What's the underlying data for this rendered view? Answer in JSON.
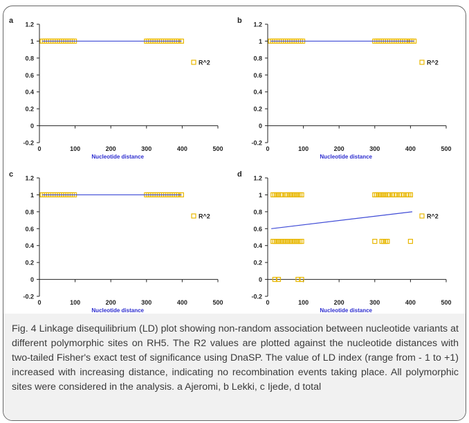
{
  "colors": {
    "marker": "#e8b700",
    "trend": "#3f4bd6",
    "axis_title": "#2d2dcf",
    "axis": "#222222",
    "caption_bg": "#f1f1f1"
  },
  "caption": "Fig. 4 Linkage disequilibrium (LD) plot showing non-random association between nucleotide variants at different polymorphic sites on RH5. The R2 values are plotted against the nucleotide distances with two-tailed Fisher's exact test of significance using DnaSP. The value of LD index (range from - 1 to +1) increased with increasing distance, indicating no recombination events taking place. All polymorphic sites were considered in the analysis. a Ajeromi, b Lekki, c Ijede, d total",
  "chart_data": [
    {
      "panel": "a",
      "type": "scatter",
      "xlabel": "Nucleotide distance",
      "ylabel": "",
      "xlim": [
        0,
        500
      ],
      "ylim": [
        -0.2,
        1.2
      ],
      "xticks": [
        "0",
        "100",
        "200",
        "300",
        "400",
        "500"
      ],
      "yticks": [
        "-0.2",
        "0",
        "0.2",
        "0.4",
        "0.6",
        "0.8",
        "1",
        "1.2"
      ],
      "legend": "right",
      "series": [
        {
          "name": "R^2",
          "x": [
            8,
            14,
            20,
            26,
            32,
            38,
            44,
            50,
            56,
            62,
            68,
            74,
            80,
            86,
            92,
            98,
            300,
            306,
            312,
            318,
            324,
            330,
            336,
            342,
            348,
            354,
            360,
            366,
            372,
            378,
            384,
            390,
            398
          ],
          "y": [
            1,
            1,
            1,
            1,
            1,
            1,
            1,
            1,
            1,
            1,
            1,
            1,
            1,
            1,
            1,
            1,
            1,
            1,
            1,
            1,
            1,
            1,
            1,
            1,
            1,
            1,
            1,
            1,
            1,
            1,
            1,
            1,
            1
          ]
        }
      ],
      "trendline": {
        "x": [
          8,
          398
        ],
        "y": [
          1,
          1
        ]
      }
    },
    {
      "panel": "b",
      "type": "scatter",
      "xlabel": "Nucleotide distance",
      "ylabel": "",
      "xlim": [
        0,
        500
      ],
      "ylim": [
        -0.2,
        1.2
      ],
      "xticks": [
        "0",
        "100",
        "200",
        "300",
        "400",
        "500"
      ],
      "yticks": [
        "-0.2",
        "0",
        "0.2",
        "0.4",
        "0.6",
        "0.8",
        "1",
        "1.2"
      ],
      "legend": "right",
      "series": [
        {
          "name": "R^2",
          "x": [
            8,
            14,
            20,
            26,
            32,
            38,
            44,
            50,
            56,
            62,
            68,
            74,
            80,
            86,
            92,
            98,
            300,
            306,
            312,
            318,
            324,
            330,
            336,
            342,
            348,
            354,
            360,
            366,
            372,
            378,
            384,
            390,
            398,
            404,
            410
          ],
          "y": [
            1,
            1,
            1,
            1,
            1,
            1,
            1,
            1,
            1,
            1,
            1,
            1,
            1,
            1,
            1,
            1,
            1,
            1,
            1,
            1,
            1,
            1,
            1,
            1,
            1,
            1,
            1,
            1,
            1,
            1,
            1,
            1,
            1,
            1,
            1
          ]
        }
      ],
      "trendline": {
        "x": [
          8,
          410
        ],
        "y": [
          1,
          1
        ]
      }
    },
    {
      "panel": "c",
      "type": "scatter",
      "xlabel": "Nucleotide distance",
      "ylabel": "",
      "xlim": [
        0,
        500
      ],
      "ylim": [
        -0.2,
        1.2
      ],
      "xticks": [
        "0",
        "100",
        "200",
        "300",
        "400",
        "500"
      ],
      "yticks": [
        "-0.2",
        "0",
        "0.2",
        "0.4",
        "0.6",
        "0.8",
        "1",
        "1.2"
      ],
      "legend": "right",
      "series": [
        {
          "name": "R^2",
          "x": [
            8,
            14,
            20,
            26,
            32,
            38,
            44,
            50,
            56,
            62,
            68,
            74,
            80,
            86,
            92,
            98,
            300,
            306,
            312,
            318,
            324,
            330,
            336,
            342,
            348,
            354,
            360,
            366,
            372,
            378,
            384,
            390,
            398
          ],
          "y": [
            1,
            1,
            1,
            1,
            1,
            1,
            1,
            1,
            1,
            1,
            1,
            1,
            1,
            1,
            1,
            1,
            1,
            1,
            1,
            1,
            1,
            1,
            1,
            1,
            1,
            1,
            1,
            1,
            1,
            1,
            1,
            1,
            1
          ]
        }
      ],
      "trendline": {
        "x": [
          8,
          398
        ],
        "y": [
          1,
          1
        ]
      }
    },
    {
      "panel": "d",
      "type": "scatter",
      "xlabel": "Nucleotide distance",
      "ylabel": "",
      "xlim": [
        0,
        500
      ],
      "ylim": [
        -0.2,
        1.2
      ],
      "xticks": [
        "0",
        "100",
        "200",
        "300",
        "400",
        "500"
      ],
      "yticks": [
        "-0.2",
        "0",
        "0.2",
        "0.4",
        "0.6",
        "0.8",
        "1",
        "1.2"
      ],
      "legend": "right",
      "series": [
        {
          "name": "R^2",
          "x": [
            15,
            20,
            25,
            30,
            35,
            40,
            50,
            55,
            60,
            65,
            70,
            75,
            80,
            85,
            90,
            95,
            300,
            305,
            310,
            315,
            320,
            325,
            330,
            335,
            340,
            350,
            355,
            360,
            370,
            375,
            380,
            390,
            395,
            400,
            15,
            20,
            25,
            30,
            35,
            40,
            45,
            50,
            55,
            60,
            65,
            70,
            75,
            80,
            85,
            90,
            95,
            300,
            320,
            325,
            330,
            335,
            400,
            20,
            30,
            85,
            95
          ],
          "y": [
            1,
            1,
            1,
            1,
            1,
            1,
            1,
            1,
            1,
            1,
            1,
            1,
            1,
            1,
            1,
            1,
            1,
            1,
            1,
            1,
            1,
            1,
            1,
            1,
            1,
            1,
            1,
            1,
            1,
            1,
            1,
            1,
            1,
            1,
            0.45,
            0.45,
            0.45,
            0.45,
            0.45,
            0.45,
            0.45,
            0.45,
            0.45,
            0.45,
            0.45,
            0.45,
            0.45,
            0.45,
            0.45,
            0.45,
            0.45,
            0.45,
            0.45,
            0.45,
            0.45,
            0.45,
            0.45,
            0,
            0,
            0,
            0
          ]
        }
      ],
      "trendline": {
        "x": [
          10,
          405
        ],
        "y": [
          0.6,
          0.8
        ]
      }
    }
  ]
}
